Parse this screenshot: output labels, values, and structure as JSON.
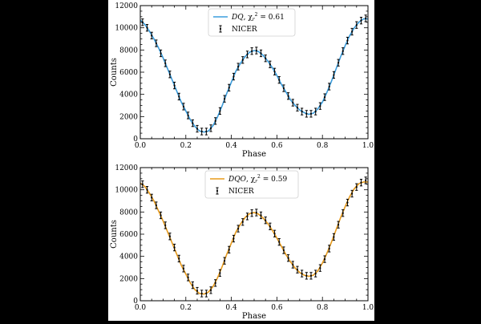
{
  "chart_data": [
    {
      "type": "line",
      "xlabel": "Phase",
      "ylabel": "Counts",
      "xlim": [
        0.0,
        1.0
      ],
      "ylim": [
        0,
        12000
      ],
      "xticks": [
        "0.0",
        "0.2",
        "0.4",
        "0.6",
        "0.8",
        "1.0"
      ],
      "yticks": [
        "0",
        "2000",
        "4000",
        "6000",
        "8000",
        "10000",
        "12000"
      ],
      "legend_position": "top-center",
      "grid": false,
      "series": [
        {
          "name_model": "DQ",
          "name_suffix": ", χ",
          "name_sub": "r",
          "name_sup": "2",
          "name_value": " = 0.61",
          "kind": "model-line",
          "color": "#3b9ddd",
          "x": [
            0.0,
            0.02,
            0.04,
            0.06,
            0.08,
            0.1,
            0.12,
            0.14,
            0.16,
            0.18,
            0.2,
            0.22,
            0.24,
            0.26,
            0.28,
            0.3,
            0.32,
            0.34,
            0.36,
            0.38,
            0.4,
            0.42,
            0.44,
            0.46,
            0.48,
            0.5,
            0.52,
            0.54,
            0.56,
            0.58,
            0.6,
            0.62,
            0.64,
            0.66,
            0.68,
            0.7,
            0.72,
            0.74,
            0.76,
            0.78,
            0.8,
            0.82,
            0.84,
            0.86,
            0.88,
            0.9,
            0.92,
            0.94,
            0.96,
            0.98,
            1.0
          ],
          "values": [
            10700,
            10300,
            9700,
            9000,
            8200,
            7300,
            6300,
            5300,
            4300,
            3300,
            2500,
            1700,
            1100,
            700,
            600,
            700,
            1200,
            2000,
            3000,
            4100,
            5100,
            6100,
            6800,
            7400,
            7800,
            7950,
            7850,
            7500,
            7000,
            6400,
            5700,
            4900,
            4200,
            3500,
            3000,
            2600,
            2350,
            2200,
            2300,
            2700,
            3300,
            4200,
            5200,
            6300,
            7400,
            8400,
            9300,
            10000,
            10500,
            10800,
            10800
          ]
        },
        {
          "name": "NICER",
          "kind": "error-points",
          "color": "#000000",
          "x": [
            0.01,
            0.03,
            0.05,
            0.07,
            0.09,
            0.11,
            0.13,
            0.15,
            0.17,
            0.19,
            0.21,
            0.23,
            0.25,
            0.27,
            0.29,
            0.31,
            0.33,
            0.35,
            0.37,
            0.39,
            0.41,
            0.43,
            0.45,
            0.47,
            0.49,
            0.51,
            0.53,
            0.55,
            0.57,
            0.59,
            0.61,
            0.63,
            0.65,
            0.67,
            0.69,
            0.71,
            0.73,
            0.75,
            0.77,
            0.79,
            0.81,
            0.83,
            0.85,
            0.87,
            0.89,
            0.91,
            0.93,
            0.95,
            0.97,
            0.99
          ],
          "values": [
            10500,
            10000,
            9300,
            8600,
            7700,
            6800,
            5800,
            4800,
            3800,
            2900,
            2100,
            1400,
            900,
            650,
            650,
            950,
            1600,
            2500,
            3600,
            4600,
            5600,
            6500,
            7100,
            7600,
            7900,
            7950,
            7700,
            7250,
            6700,
            6050,
            5300,
            4550,
            3850,
            3250,
            2800,
            2450,
            2250,
            2250,
            2450,
            2950,
            3750,
            4700,
            5750,
            6850,
            7900,
            8850,
            9650,
            10250,
            10650,
            10850
          ],
          "yerr": 300
        }
      ]
    },
    {
      "type": "line",
      "xlabel": "Phase",
      "ylabel": "Counts",
      "xlim": [
        0.0,
        1.0
      ],
      "ylim": [
        0,
        12000
      ],
      "xticks": [
        "0.0",
        "0.2",
        "0.4",
        "0.6",
        "0.8",
        "1.0"
      ],
      "yticks": [
        "0",
        "2000",
        "4000",
        "6000",
        "8000",
        "10000",
        "12000"
      ],
      "legend_position": "top-center",
      "grid": false,
      "series": [
        {
          "name_model": "DQO",
          "name_suffix": ", χ",
          "name_sub": "r",
          "name_sup": "2",
          "name_value": " = 0.59",
          "kind": "model-line",
          "color": "#e89b1c",
          "x": [
            0.0,
            0.02,
            0.04,
            0.06,
            0.08,
            0.1,
            0.12,
            0.14,
            0.16,
            0.18,
            0.2,
            0.22,
            0.24,
            0.26,
            0.28,
            0.3,
            0.32,
            0.34,
            0.36,
            0.38,
            0.4,
            0.42,
            0.44,
            0.46,
            0.48,
            0.5,
            0.52,
            0.54,
            0.56,
            0.58,
            0.6,
            0.62,
            0.64,
            0.66,
            0.68,
            0.7,
            0.72,
            0.74,
            0.76,
            0.78,
            0.8,
            0.82,
            0.84,
            0.86,
            0.88,
            0.9,
            0.92,
            0.94,
            0.96,
            0.98,
            1.0
          ],
          "values": [
            10600,
            10300,
            9700,
            9000,
            8100,
            7200,
            6200,
            5200,
            4200,
            3200,
            2400,
            1600,
            1000,
            650,
            600,
            800,
            1300,
            2100,
            3100,
            4200,
            5200,
            6200,
            6900,
            7500,
            7850,
            7950,
            7800,
            7450,
            6950,
            6350,
            5650,
            4900,
            4150,
            3500,
            2950,
            2550,
            2300,
            2200,
            2300,
            2700,
            3400,
            4300,
            5300,
            6400,
            7500,
            8500,
            9400,
            10100,
            10550,
            10700,
            10700
          ]
        },
        {
          "name": "NICER",
          "kind": "error-points",
          "color": "#000000",
          "x": [
            0.01,
            0.03,
            0.05,
            0.07,
            0.09,
            0.11,
            0.13,
            0.15,
            0.17,
            0.19,
            0.21,
            0.23,
            0.25,
            0.27,
            0.29,
            0.31,
            0.33,
            0.35,
            0.37,
            0.39,
            0.41,
            0.43,
            0.45,
            0.47,
            0.49,
            0.51,
            0.53,
            0.55,
            0.57,
            0.59,
            0.61,
            0.63,
            0.65,
            0.67,
            0.69,
            0.71,
            0.73,
            0.75,
            0.77,
            0.79,
            0.81,
            0.83,
            0.85,
            0.87,
            0.89,
            0.91,
            0.93,
            0.95,
            0.97,
            0.99
          ],
          "values": [
            10500,
            10000,
            9300,
            8600,
            7700,
            6800,
            5800,
            4800,
            3800,
            2900,
            2100,
            1400,
            900,
            650,
            650,
            950,
            1600,
            2500,
            3600,
            4600,
            5600,
            6500,
            7100,
            7600,
            7900,
            7950,
            7700,
            7250,
            6700,
            6050,
            5300,
            4550,
            3850,
            3250,
            2800,
            2450,
            2250,
            2250,
            2450,
            2950,
            3750,
            4700,
            5750,
            6850,
            7900,
            8850,
            9650,
            10250,
            10650,
            10850
          ],
          "yerr": 300
        }
      ]
    }
  ]
}
